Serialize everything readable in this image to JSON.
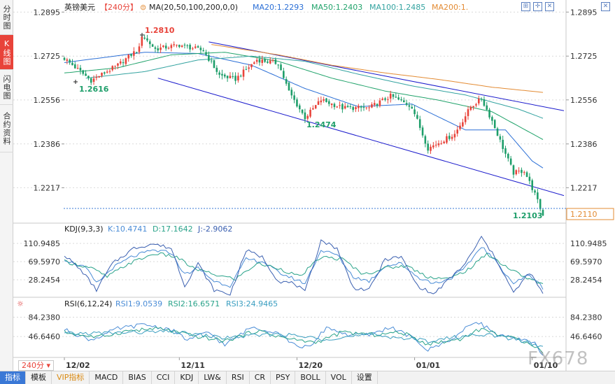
{
  "sidebar": {
    "tabs": [
      {
        "label": "分时图",
        "active": false
      },
      {
        "label": "K线图",
        "active": true
      },
      {
        "label": "闪电图",
        "active": false
      },
      {
        "label": "合约资料",
        "active": false
      }
    ]
  },
  "header": {
    "symbol": "英镑美元",
    "period": "【240分】",
    "ma_label": "MA(20,50,100,200,0,0)",
    "ma20": "MA20:1.2293",
    "ma50": "MA50:1.2403",
    "ma100": "MA100:1.2485",
    "ma200": "MA200:1."
  },
  "kdj_header": {
    "label": "KDJ(9,3,3)",
    "k": "K:10.4741",
    "d": "D:17.1642",
    "j": "J:-2.9062"
  },
  "rsi_header": {
    "label": "RSI(6,12,24)",
    "rsi1": "RSI1:9.0539",
    "rsi2": "RSI2:16.6571",
    "rsi3": "RSI3:24.9465"
  },
  "price_labels": {
    "high": "1.2810",
    "low_left": "1.2616",
    "mid_low": "1.2474",
    "last_low": "1.2103",
    "current": "1.2110"
  },
  "period_button": "240分",
  "watermark": "FX678",
  "bottom_tabs": [
    {
      "label": "指标",
      "active": true
    },
    {
      "label": "模板",
      "active": false
    },
    {
      "label": "VIP指标",
      "active": false,
      "vip": true
    },
    {
      "label": "MACD",
      "active": false
    },
    {
      "label": "BIAS",
      "active": false
    },
    {
      "label": "CCI",
      "active": false
    },
    {
      "label": "KDJ",
      "active": false
    },
    {
      "label": "LW&",
      "active": false
    },
    {
      "label": "RSI",
      "active": false
    },
    {
      "label": "CR",
      "active": false
    },
    {
      "label": "PSY",
      "active": false
    },
    {
      "label": "BOLL",
      "active": false
    },
    {
      "label": "VOL",
      "active": false
    },
    {
      "label": "设置",
      "active": false
    }
  ],
  "colors": {
    "up": "#e8433a",
    "down": "#1e9e6a",
    "ma20": "#2b6fd6",
    "ma50": "#21a36b",
    "ma100": "#33a3a0",
    "ma200": "#e38b33",
    "channel": "#1a1acc",
    "k": "#4a8cd6",
    "d": "#2aa38a",
    "j": "#3a5fb0"
  },
  "chart_data": [
    {
      "type": "candlestick",
      "y_ticks": [
        "1.2895",
        "1.2725",
        "1.2556",
        "1.2386",
        "1.2217"
      ],
      "y_tick_values": [
        1.2895,
        1.2725,
        1.2556,
        1.2386,
        1.2217
      ],
      "ylim": [
        1.2083,
        1.292
      ],
      "x_ticks": [
        "12/02",
        "12/11",
        "12/20",
        "01/01",
        "01/10"
      ],
      "x_tick_index": [
        0,
        43,
        87,
        131,
        175
      ],
      "bar_count": 180,
      "anchors": [
        {
          "i": 0,
          "p": 1.2716
        },
        {
          "i": 10,
          "p": 1.2631
        },
        {
          "i": 20,
          "p": 1.269
        },
        {
          "i": 28,
          "p": 1.2755
        },
        {
          "i": 29,
          "p": 1.2806
        },
        {
          "i": 34,
          "p": 1.2752
        },
        {
          "i": 43,
          "p": 1.2768
        },
        {
          "i": 52,
          "p": 1.2746
        },
        {
          "i": 58,
          "p": 1.2651
        },
        {
          "i": 64,
          "p": 1.2636
        },
        {
          "i": 72,
          "p": 1.2711
        },
        {
          "i": 80,
          "p": 1.2697
        },
        {
          "i": 84,
          "p": 1.2588
        },
        {
          "i": 90,
          "p": 1.2487
        },
        {
          "i": 96,
          "p": 1.2556
        },
        {
          "i": 104,
          "p": 1.2525
        },
        {
          "i": 114,
          "p": 1.2525
        },
        {
          "i": 122,
          "p": 1.2571
        },
        {
          "i": 130,
          "p": 1.253
        },
        {
          "i": 136,
          "p": 1.2369
        },
        {
          "i": 146,
          "p": 1.2424
        },
        {
          "i": 152,
          "p": 1.253
        },
        {
          "i": 156,
          "p": 1.256
        },
        {
          "i": 160,
          "p": 1.2475
        },
        {
          "i": 164,
          "p": 1.2372
        },
        {
          "i": 168,
          "p": 1.2274
        },
        {
          "i": 172,
          "p": 1.2283
        },
        {
          "i": 176,
          "p": 1.2192
        },
        {
          "i": 179,
          "p": 1.211
        }
      ],
      "ma_anchors": {
        "ma20": [
          [
            0,
            1.27
          ],
          [
            30,
            1.274
          ],
          [
            50,
            1.2735
          ],
          [
            70,
            1.269
          ],
          [
            90,
            1.26
          ],
          [
            110,
            1.253
          ],
          [
            130,
            1.254
          ],
          [
            150,
            1.244
          ],
          [
            165,
            1.244
          ],
          [
            175,
            1.232
          ],
          [
            179,
            1.2293
          ]
        ],
        "ma50": [
          [
            0,
            1.266
          ],
          [
            20,
            1.268
          ],
          [
            40,
            1.273
          ],
          [
            60,
            1.274
          ],
          [
            80,
            1.2705
          ],
          [
            100,
            1.264
          ],
          [
            120,
            1.259
          ],
          [
            140,
            1.2555
          ],
          [
            160,
            1.251
          ],
          [
            179,
            1.2403
          ]
        ],
        "ma100": [
          [
            8,
            1.264
          ],
          [
            30,
            1.2665
          ],
          [
            50,
            1.271
          ],
          [
            70,
            1.2725
          ],
          [
            90,
            1.2705
          ],
          [
            110,
            1.2655
          ],
          [
            130,
            1.261
          ],
          [
            150,
            1.2575
          ],
          [
            170,
            1.252
          ],
          [
            179,
            1.2485
          ]
        ],
        "ma200": [
          [
            55,
            1.277
          ],
          [
            80,
            1.273
          ],
          [
            100,
            1.269
          ],
          [
            120,
            1.266
          ],
          [
            140,
            1.2635
          ],
          [
            160,
            1.2605
          ],
          [
            179,
            1.2585
          ]
        ]
      },
      "channel_upper": [
        [
          54,
          1.278
        ],
        [
          179,
          1.253
        ]
      ],
      "channel_lower": [
        [
          35,
          1.264
        ],
        [
          179,
          1.221
        ]
      ]
    },
    {
      "type": "line",
      "name": "KDJ",
      "y_ticks": [
        "110.9485",
        "69.5970",
        "28.2454"
      ],
      "y_tick_values": [
        110.9485,
        69.597,
        28.2454
      ],
      "ylim": [
        -10,
        130
      ],
      "k_anchors": [
        [
          0,
          75
        ],
        [
          8,
          55
        ],
        [
          12,
          20
        ],
        [
          18,
          55
        ],
        [
          25,
          80
        ],
        [
          33,
          95
        ],
        [
          40,
          90
        ],
        [
          45,
          40
        ],
        [
          50,
          55
        ],
        [
          56,
          25
        ],
        [
          62,
          15
        ],
        [
          68,
          75
        ],
        [
          74,
          70
        ],
        [
          80,
          45
        ],
        [
          84,
          35
        ],
        [
          90,
          20
        ],
        [
          96,
          95
        ],
        [
          102,
          85
        ],
        [
          108,
          35
        ],
        [
          114,
          25
        ],
        [
          120,
          60
        ],
        [
          126,
          65
        ],
        [
          132,
          35
        ],
        [
          138,
          20
        ],
        [
          144,
          30
        ],
        [
          150,
          55
        ],
        [
          156,
          105
        ],
        [
          162,
          65
        ],
        [
          168,
          20
        ],
        [
          174,
          40
        ],
        [
          179,
          10
        ]
      ],
      "d_anchors": [
        [
          0,
          70
        ],
        [
          10,
          55
        ],
        [
          16,
          35
        ],
        [
          24,
          65
        ],
        [
          34,
          88
        ],
        [
          42,
          80
        ],
        [
          48,
          55
        ],
        [
          56,
          40
        ],
        [
          64,
          30
        ],
        [
          72,
          65
        ],
        [
          80,
          55
        ],
        [
          88,
          35
        ],
        [
          96,
          80
        ],
        [
          104,
          75
        ],
        [
          112,
          40
        ],
        [
          120,
          55
        ],
        [
          128,
          60
        ],
        [
          136,
          35
        ],
        [
          144,
          30
        ],
        [
          152,
          55
        ],
        [
          158,
          88
        ],
        [
          166,
          55
        ],
        [
          172,
          35
        ],
        [
          179,
          17
        ]
      ],
      "j_anchors": [
        [
          0,
          85
        ],
        [
          7,
          45
        ],
        [
          12,
          5
        ],
        [
          18,
          65
        ],
        [
          26,
          100
        ],
        [
          33,
          110
        ],
        [
          40,
          100
        ],
        [
          45,
          15
        ],
        [
          50,
          65
        ],
        [
          56,
          5
        ],
        [
          62,
          -5
        ],
        [
          68,
          95
        ],
        [
          74,
          80
        ],
        [
          80,
          25
        ],
        [
          86,
          20
        ],
        [
          90,
          0
        ],
        [
          96,
          118
        ],
        [
          102,
          100
        ],
        [
          108,
          10
        ],
        [
          114,
          5
        ],
        [
          120,
          75
        ],
        [
          126,
          80
        ],
        [
          132,
          15
        ],
        [
          138,
          -5
        ],
        [
          144,
          30
        ],
        [
          150,
          65
        ],
        [
          156,
          125
        ],
        [
          162,
          70
        ],
        [
          168,
          -2
        ],
        [
          174,
          45
        ],
        [
          179,
          -3
        ]
      ]
    },
    {
      "type": "line",
      "name": "RSI",
      "y_ticks": [
        "84.2380",
        "46.6460"
      ],
      "y_tick_values": [
        84.238,
        46.646
      ],
      "ylim": [
        10,
        100
      ],
      "rsi1_anchors": [
        [
          0,
          60
        ],
        [
          10,
          40
        ],
        [
          20,
          62
        ],
        [
          30,
          70
        ],
        [
          40,
          60
        ],
        [
          46,
          40
        ],
        [
          54,
          55
        ],
        [
          60,
          30
        ],
        [
          70,
          65
        ],
        [
          80,
          55
        ],
        [
          86,
          30
        ],
        [
          92,
          25
        ],
        [
          98,
          65
        ],
        [
          106,
          50
        ],
        [
          114,
          50
        ],
        [
          122,
          65
        ],
        [
          130,
          45
        ],
        [
          136,
          20
        ],
        [
          146,
          45
        ],
        [
          154,
          78
        ],
        [
          162,
          50
        ],
        [
          170,
          40
        ],
        [
          176,
          35
        ],
        [
          179,
          9
        ]
      ],
      "rsi2_anchors": [
        [
          0,
          55
        ],
        [
          12,
          45
        ],
        [
          24,
          58
        ],
        [
          36,
          62
        ],
        [
          48,
          48
        ],
        [
          60,
          38
        ],
        [
          72,
          58
        ],
        [
          84,
          42
        ],
        [
          94,
          35
        ],
        [
          104,
          55
        ],
        [
          116,
          50
        ],
        [
          126,
          55
        ],
        [
          136,
          32
        ],
        [
          148,
          42
        ],
        [
          156,
          62
        ],
        [
          166,
          45
        ],
        [
          174,
          35
        ],
        [
          179,
          17
        ]
      ],
      "rsi3_anchors": [
        [
          0,
          52
        ],
        [
          20,
          54
        ],
        [
          40,
          56
        ],
        [
          60,
          44
        ],
        [
          80,
          52
        ],
        [
          96,
          42
        ],
        [
          116,
          50
        ],
        [
          136,
          38
        ],
        [
          156,
          52
        ],
        [
          172,
          38
        ],
        [
          179,
          25
        ]
      ]
    }
  ]
}
